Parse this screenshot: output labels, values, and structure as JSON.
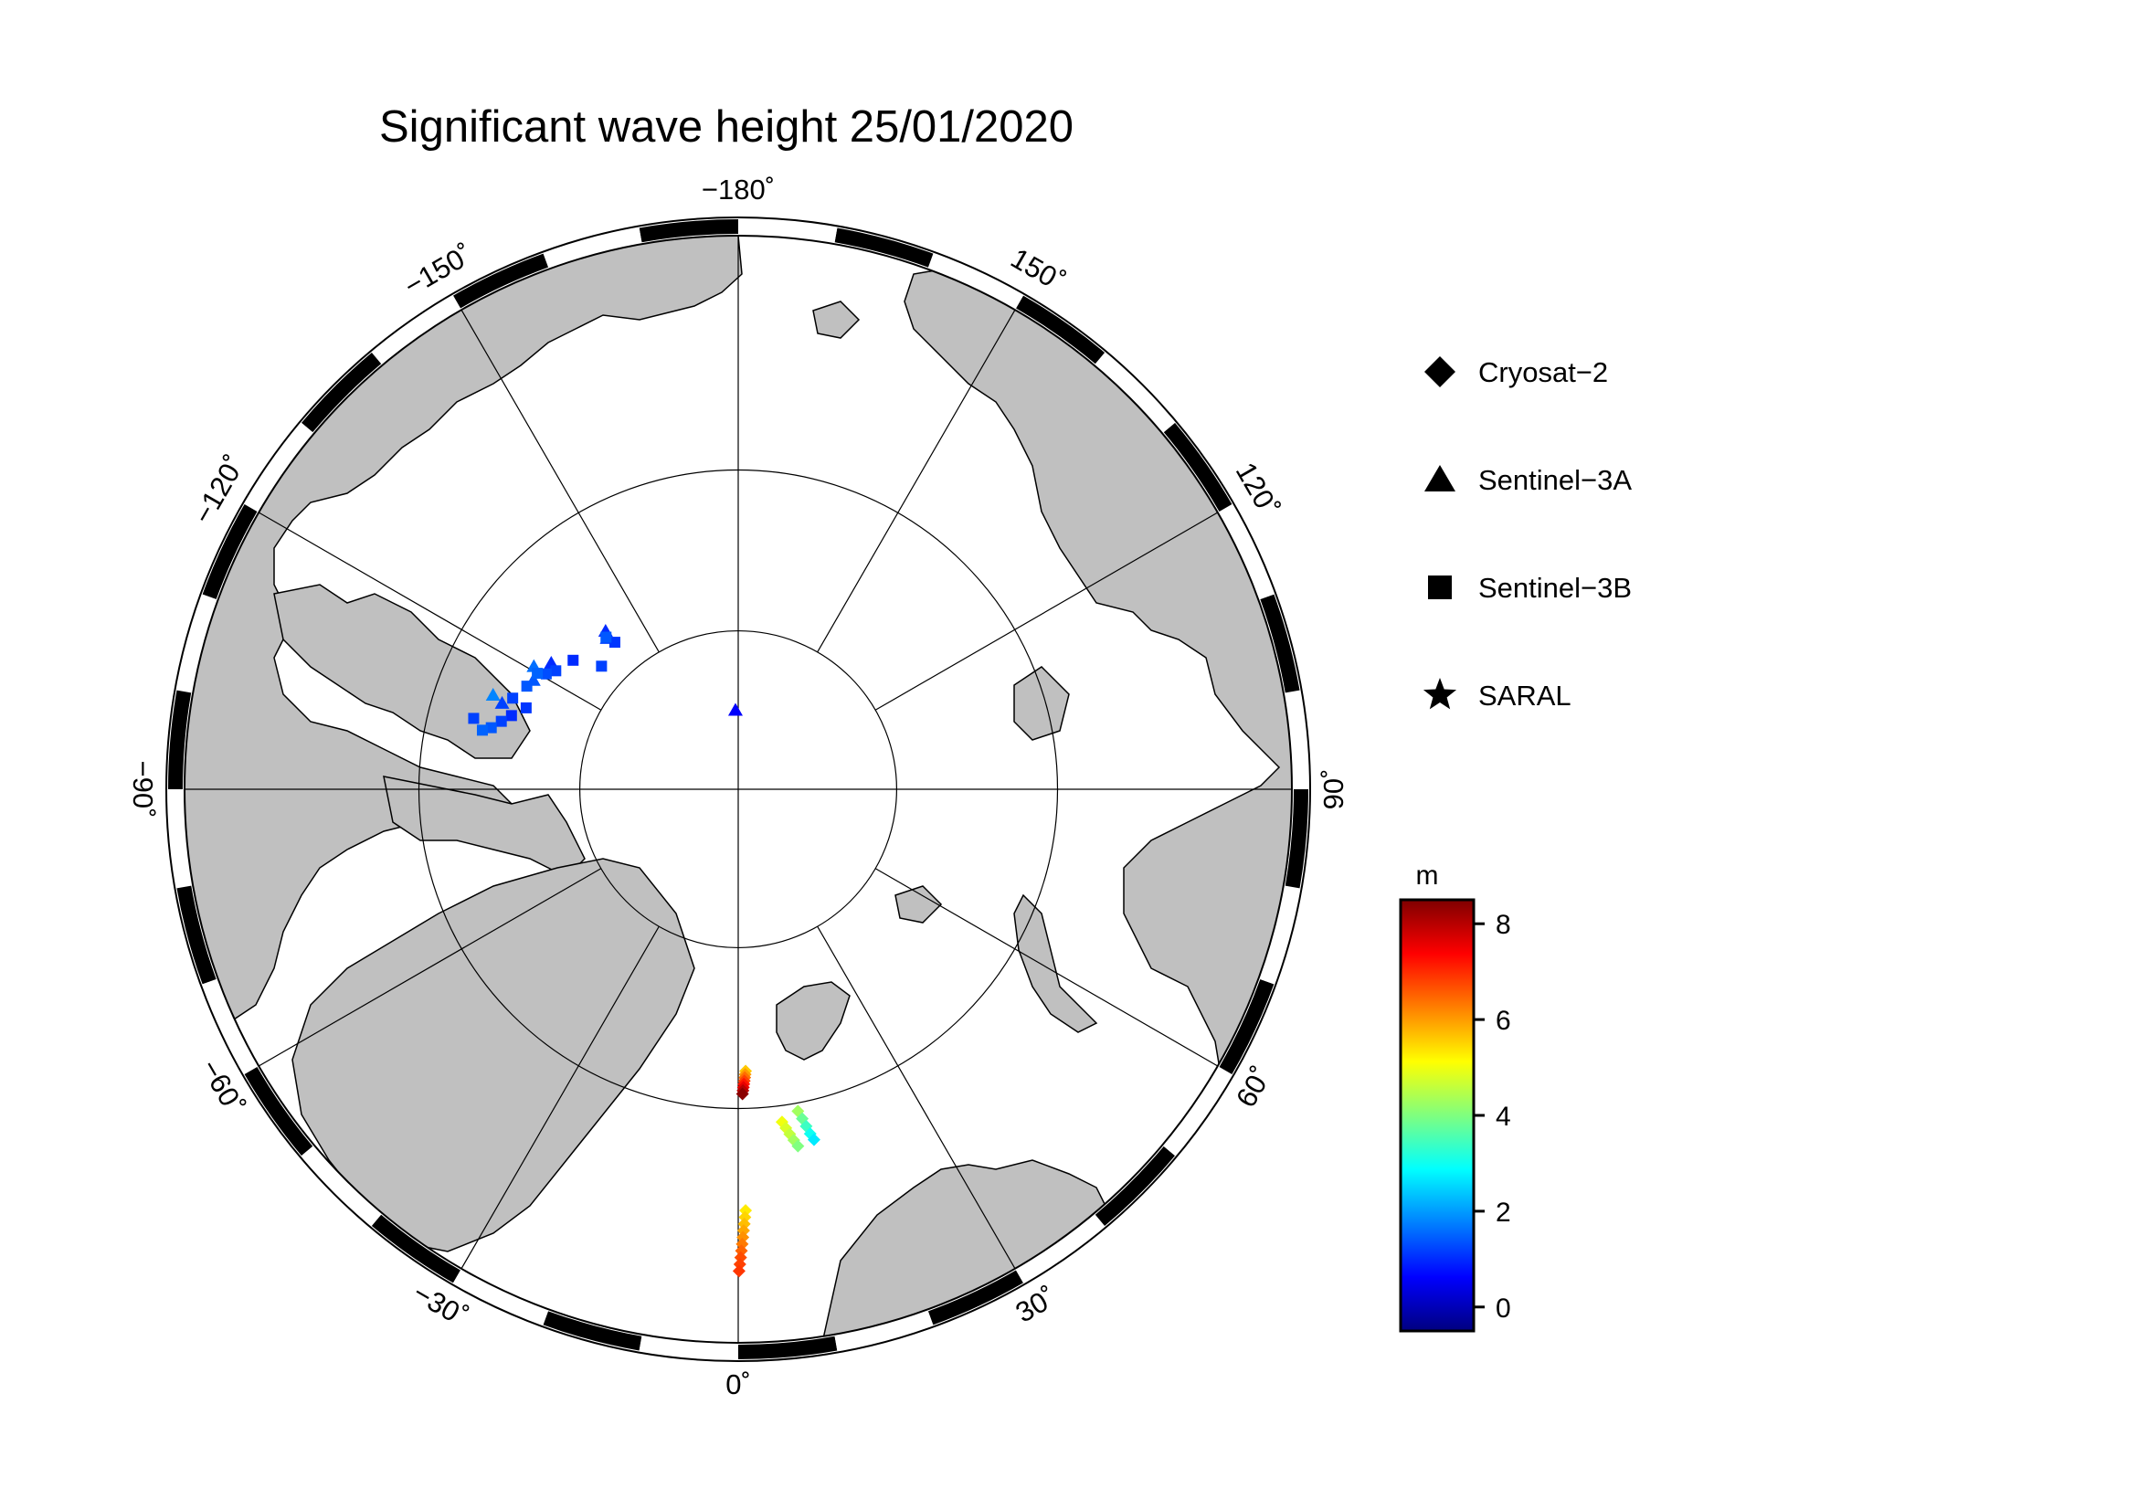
{
  "title": "Significant wave height 25/01/2020",
  "map": {
    "projection": "north polar stereographic",
    "ocean_color": "#ffffff",
    "land_color": "#c0c0c0",
    "coast_color": "#000000",
    "longitude_labels": [
      {
        "lon": -180,
        "text": "−180˚"
      },
      {
        "lon": -150,
        "text": "−150˚"
      },
      {
        "lon": -120,
        "text": "−120˚"
      },
      {
        "lon": -90,
        "text": "−90˚"
      },
      {
        "lon": -60,
        "text": "−60˚"
      },
      {
        "lon": -30,
        "text": "−30˚"
      },
      {
        "lon": 0,
        "text": "0˚"
      },
      {
        "lon": 30,
        "text": "30˚"
      },
      {
        "lon": 60,
        "text": "60˚"
      },
      {
        "lon": 90,
        "text": "90˚"
      },
      {
        "lon": 120,
        "text": "120˚"
      },
      {
        "lon": 150,
        "text": "150˚"
      }
    ]
  },
  "legend": [
    {
      "symbol": "diamond",
      "label": "Cryosat−2"
    },
    {
      "symbol": "triangle",
      "label": "Sentinel−3A"
    },
    {
      "symbol": "square",
      "label": "Sentinel−3B"
    },
    {
      "symbol": "star",
      "label": "SARAL"
    }
  ],
  "colorbar": {
    "unit": "m",
    "min": -0.5,
    "max": 8.5,
    "ticks": [
      "0",
      "2",
      "4",
      "6",
      "8"
    ],
    "colormap": "jet"
  },
  "chart_data": {
    "type": "scatter",
    "title": "Significant wave height 25/01/2020",
    "value_unit": "m",
    "color_range": [
      -0.5,
      8.5
    ],
    "series": [
      {
        "name": "Cryosat−2",
        "marker": "diamond",
        "points": [
          {
            "lon": 1.5,
            "lat": 72.3,
            "swh": 5.6
          },
          {
            "lon": 1.4,
            "lat": 72.1,
            "swh": 6.0
          },
          {
            "lon": 1.3,
            "lat": 71.9,
            "swh": 6.4
          },
          {
            "lon": 1.2,
            "lat": 71.7,
            "swh": 6.8
          },
          {
            "lon": 1.1,
            "lat": 71.5,
            "swh": 7.2
          },
          {
            "lon": 1.0,
            "lat": 71.3,
            "swh": 7.6
          },
          {
            "lon": 0.9,
            "lat": 71.1,
            "swh": 8.0
          },
          {
            "lon": 0.8,
            "lat": 70.9,
            "swh": 8.4
          },
          {
            "lon": 1.0,
            "lat": 63.8,
            "swh": 5.3
          },
          {
            "lon": 0.9,
            "lat": 63.4,
            "swh": 5.5
          },
          {
            "lon": 0.8,
            "lat": 63.0,
            "swh": 5.7
          },
          {
            "lon": 0.7,
            "lat": 62.6,
            "swh": 5.9
          },
          {
            "lon": 0.6,
            "lat": 62.2,
            "swh": 6.1
          },
          {
            "lon": 0.5,
            "lat": 61.8,
            "swh": 6.3
          },
          {
            "lon": 0.4,
            "lat": 61.4,
            "swh": 6.5
          },
          {
            "lon": 0.3,
            "lat": 61.0,
            "swh": 6.7
          },
          {
            "lon": 0.2,
            "lat": 60.6,
            "swh": 6.8
          },
          {
            "lon": 0.1,
            "lat": 60.2,
            "swh": 6.9
          },
          {
            "lon": 7.5,
            "lat": 69.0,
            "swh": 5.0
          },
          {
            "lon": 8.0,
            "lat": 68.6,
            "swh": 4.8
          },
          {
            "lon": 8.5,
            "lat": 68.2,
            "swh": 4.6
          },
          {
            "lon": 9.0,
            "lat": 67.8,
            "swh": 4.3
          },
          {
            "lon": 9.5,
            "lat": 67.4,
            "swh": 4.0
          },
          {
            "lon": 10.5,
            "lat": 69.5,
            "swh": 4.3
          },
          {
            "lon": 11.0,
            "lat": 69.0,
            "swh": 3.8
          },
          {
            "lon": 11.4,
            "lat": 68.5,
            "swh": 3.4
          },
          {
            "lon": 11.8,
            "lat": 68.0,
            "swh": 3.0
          },
          {
            "lon": 12.2,
            "lat": 67.6,
            "swh": 2.7
          }
        ]
      },
      {
        "name": "Sentinel−3A",
        "marker": "triangle",
        "points": [
          {
            "lon": -178,
            "lat": 85.0,
            "swh": 0.6
          },
          {
            "lon": -111,
            "lat": 73.5,
            "swh": 1.8
          },
          {
            "lon": -110,
            "lat": 74.2,
            "swh": 1.2
          },
          {
            "lon": -121,
            "lat": 75.0,
            "swh": 1.6
          },
          {
            "lon": -124,
            "lat": 75.8,
            "swh": 1.0
          },
          {
            "lon": -139,
            "lat": 77.4,
            "swh": 1.2
          },
          {
            "lon": -140,
            "lat": 77.0,
            "swh": 1.0
          },
          {
            "lon": -118,
            "lat": 75.4,
            "swh": 1.4
          }
        ]
      },
      {
        "name": "Sentinel−3B",
        "marker": "square",
        "points": [
          {
            "lon": -140,
            "lat": 77.9,
            "swh": 1.1
          },
          {
            "lon": -139,
            "lat": 77.3,
            "swh": 1.4
          },
          {
            "lon": -132,
            "lat": 78.4,
            "swh": 1.2
          },
          {
            "lon": -128,
            "lat": 76.8,
            "swh": 1.0
          },
          {
            "lon": -123,
            "lat": 76.3,
            "swh": 1.2
          },
          {
            "lon": -121,
            "lat": 75.9,
            "swh": 1.3
          },
          {
            "lon": -120,
            "lat": 75.4,
            "swh": 1.5
          },
          {
            "lon": -116,
            "lat": 75.2,
            "swh": 1.4
          },
          {
            "lon": -112,
            "lat": 74.7,
            "swh": 1.2
          },
          {
            "lon": -108,
            "lat": 75.0,
            "swh": 1.0
          },
          {
            "lon": -106,
            "lat": 74.5,
            "swh": 1.2
          },
          {
            "lon": -104,
            "lat": 74.0,
            "swh": 1.4
          },
          {
            "lon": -103,
            "lat": 73.5,
            "swh": 1.5
          },
          {
            "lon": -111,
            "lat": 75.7,
            "swh": 1.1
          },
          {
            "lon": -105,
            "lat": 72.8,
            "swh": 1.2
          }
        ]
      },
      {
        "name": "SARAL",
        "marker": "star",
        "points": []
      }
    ]
  }
}
